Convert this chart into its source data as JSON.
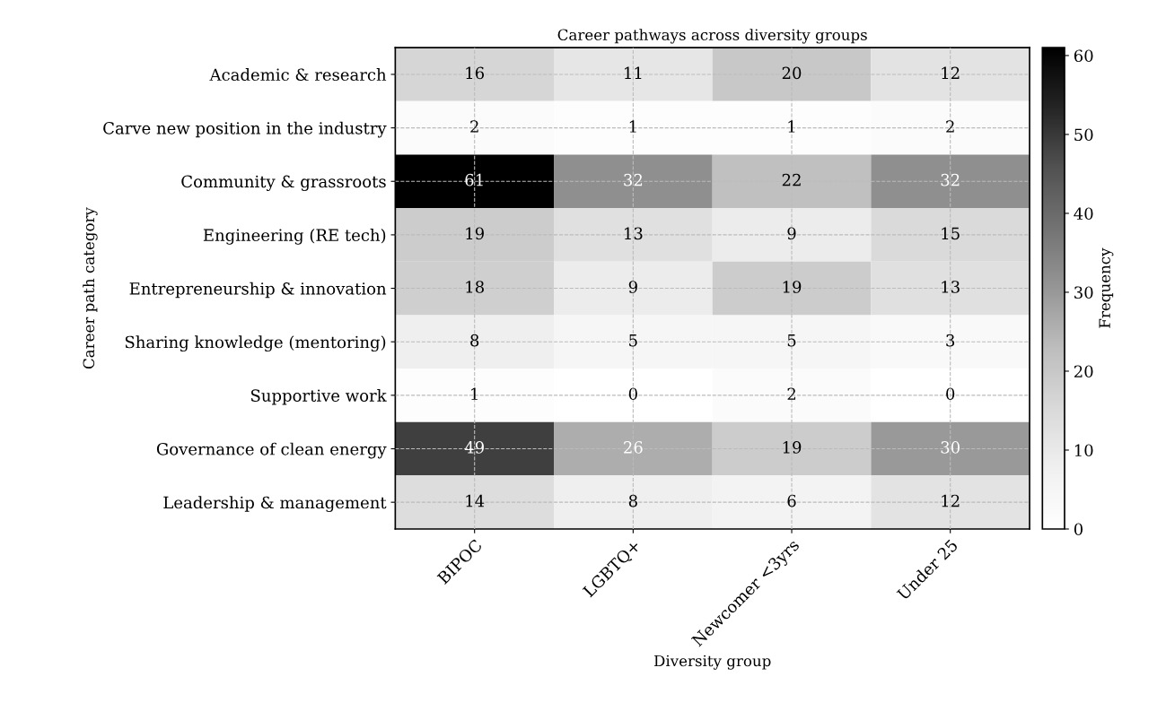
{
  "chart_data": {
    "type": "heatmap",
    "title": "Career pathways across diversity groups",
    "xlabel": "Diversity group",
    "ylabel": "Career path category",
    "clabel": "Frequency",
    "categories": [
      "BIPOC",
      "LGBTQ+",
      "Newcomer <3yrs",
      "Under 25"
    ],
    "y_categories": [
      "Academic & research",
      "Carve new position in the industry",
      "Community & grassroots",
      "Engineering (RE tech)",
      "Entrepreneurship & innovation",
      "Sharing knowledge (mentoring)",
      "Supportive work",
      "Governance of clean energy",
      "Leadership & management"
    ],
    "cells": [
      [
        16,
        11,
        20,
        12
      ],
      [
        2,
        1,
        1,
        2
      ],
      [
        61,
        32,
        22,
        32
      ],
      [
        19,
        13,
        9,
        15
      ],
      [
        18,
        9,
        19,
        13
      ],
      [
        8,
        5,
        5,
        3
      ],
      [
        1,
        0,
        2,
        0
      ],
      [
        49,
        26,
        19,
        30
      ],
      [
        14,
        8,
        6,
        12
      ]
    ],
    "clim": [
      0,
      61
    ],
    "cticks": [
      0,
      10,
      20,
      30,
      40,
      50,
      60
    ],
    "data_labels": true,
    "grid": true
  }
}
